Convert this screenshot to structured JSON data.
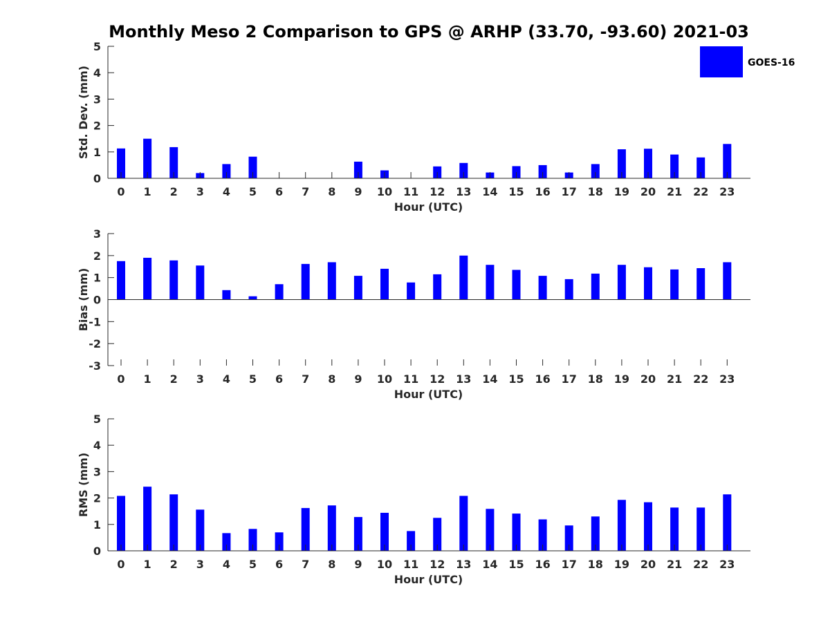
{
  "title": "Monthly Meso 2 Comparison to GPS @ ARHP (33.70, -93.60) 2021-03",
  "legend": {
    "label": "GOES-16",
    "color": "#0000ff",
    "placement": "top-right"
  },
  "chart_data": [
    {
      "type": "bar",
      "ylabel": "Std. Dev. (mm)",
      "xlabel": "Hour (UTC)",
      "ylim": [
        0,
        5
      ],
      "yticks": [
        0,
        1,
        2,
        3,
        4,
        5
      ],
      "categories": [
        "0",
        "1",
        "2",
        "3",
        "4",
        "5",
        "6",
        "7",
        "8",
        "9",
        "10",
        "11",
        "12",
        "13",
        "14",
        "15",
        "16",
        "17",
        "18",
        "19",
        "20",
        "21",
        "22",
        "23"
      ],
      "series": [
        {
          "name": "GOES-16",
          "values": [
            1.13,
            1.5,
            1.18,
            0.2,
            0.54,
            0.82,
            0,
            0,
            0,
            0.63,
            0.3,
            0,
            0.45,
            0.58,
            0.22,
            0.46,
            0.5,
            0.22,
            0.54,
            1.1,
            1.12,
            0.9,
            0.79,
            1.3
          ]
        }
      ]
    },
    {
      "type": "bar",
      "ylabel": "Bias (mm)",
      "xlabel": "Hour (UTC)",
      "ylim": [
        -3,
        3
      ],
      "yticks": [
        -3,
        -2,
        -1,
        0,
        1,
        2,
        3
      ],
      "categories": [
        "0",
        "1",
        "2",
        "3",
        "4",
        "5",
        "6",
        "7",
        "8",
        "9",
        "10",
        "11",
        "12",
        "13",
        "14",
        "15",
        "16",
        "17",
        "18",
        "19",
        "20",
        "21",
        "22",
        "23"
      ],
      "series": [
        {
          "name": "GOES-16",
          "values": [
            1.75,
            1.9,
            1.78,
            1.55,
            0.43,
            0.15,
            0.7,
            1.62,
            1.7,
            1.08,
            1.4,
            0.78,
            1.15,
            2.0,
            1.58,
            1.35,
            1.08,
            0.93,
            1.18,
            1.58,
            1.47,
            1.37,
            1.43,
            1.7
          ]
        }
      ]
    },
    {
      "type": "bar",
      "ylabel": "RMS (mm)",
      "xlabel": "Hour (UTC)",
      "ylim": [
        0,
        5
      ],
      "yticks": [
        0,
        1,
        2,
        3,
        4,
        5
      ],
      "categories": [
        "0",
        "1",
        "2",
        "3",
        "4",
        "5",
        "6",
        "7",
        "8",
        "9",
        "10",
        "11",
        "12",
        "13",
        "14",
        "15",
        "16",
        "17",
        "18",
        "19",
        "20",
        "21",
        "22",
        "23"
      ],
      "series": [
        {
          "name": "GOES-16",
          "values": [
            2.08,
            2.43,
            2.14,
            1.56,
            0.67,
            0.83,
            0.7,
            1.62,
            1.72,
            1.28,
            1.44,
            0.75,
            1.25,
            2.08,
            1.59,
            1.41,
            1.19,
            0.96,
            1.3,
            1.93,
            1.84,
            1.64,
            1.64,
            2.14
          ]
        }
      ]
    }
  ]
}
